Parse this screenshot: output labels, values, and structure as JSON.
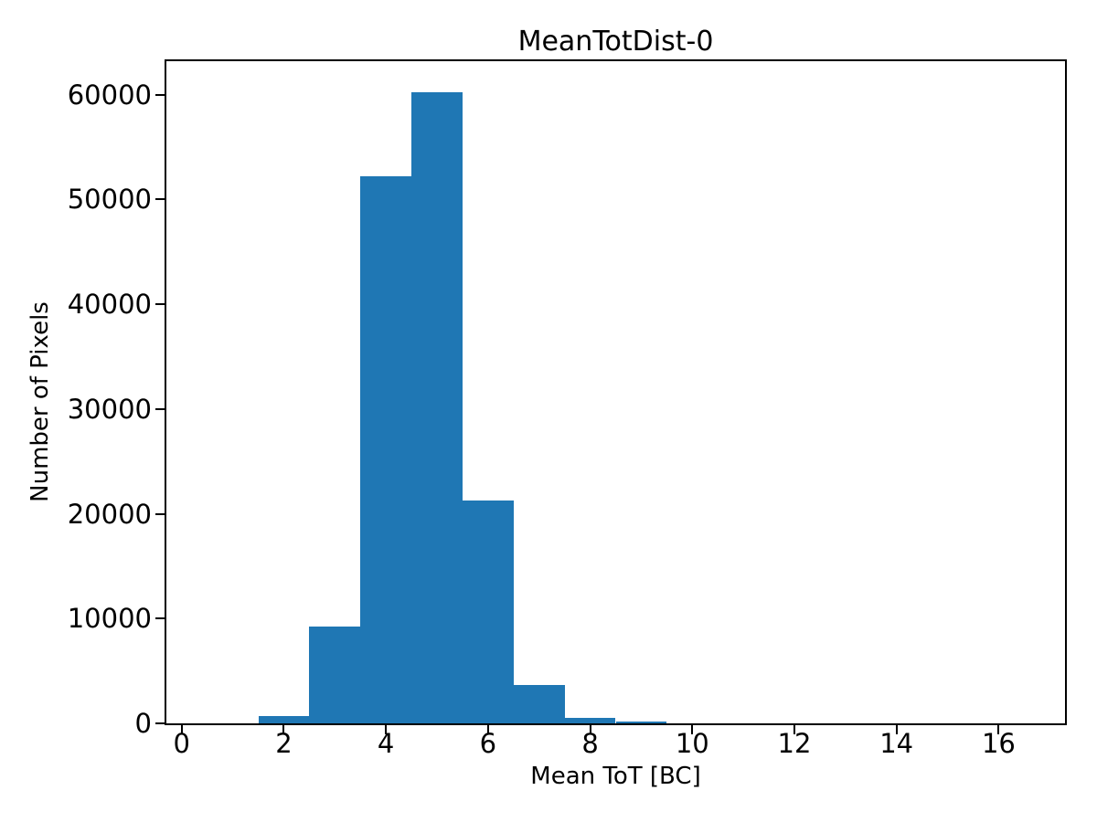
{
  "chart_data": {
    "type": "bar",
    "subtype": "histogram",
    "title": "MeanTotDist-0",
    "xlabel": "Mean ToT [BC]",
    "ylabel": "Number of Pixels",
    "bar_color": "#1f77b4",
    "axis_color": "#000000",
    "background_color": "#ffffff",
    "grid": false,
    "legend": null,
    "bin_edges": [
      1.5,
      2.5,
      3.5,
      4.5,
      5.5,
      6.5,
      7.5,
      8.5,
      9.5
    ],
    "values": [
      700,
      9200,
      52200,
      60200,
      21300,
      3700,
      500,
      150
    ],
    "xlim": [
      -0.3,
      17.3
    ],
    "ylim": [
      0,
      63200
    ],
    "xticks": {
      "values": [
        0,
        2,
        4,
        6,
        8,
        10,
        12,
        14,
        16
      ],
      "labels": [
        "0",
        "2",
        "4",
        "6",
        "8",
        "10",
        "12",
        "14",
        "16"
      ]
    },
    "yticks": {
      "values": [
        0,
        10000,
        20000,
        30000,
        40000,
        50000,
        60000
      ],
      "labels": [
        "0",
        "10000",
        "20000",
        "30000",
        "40000",
        "50000",
        "60000"
      ]
    }
  }
}
